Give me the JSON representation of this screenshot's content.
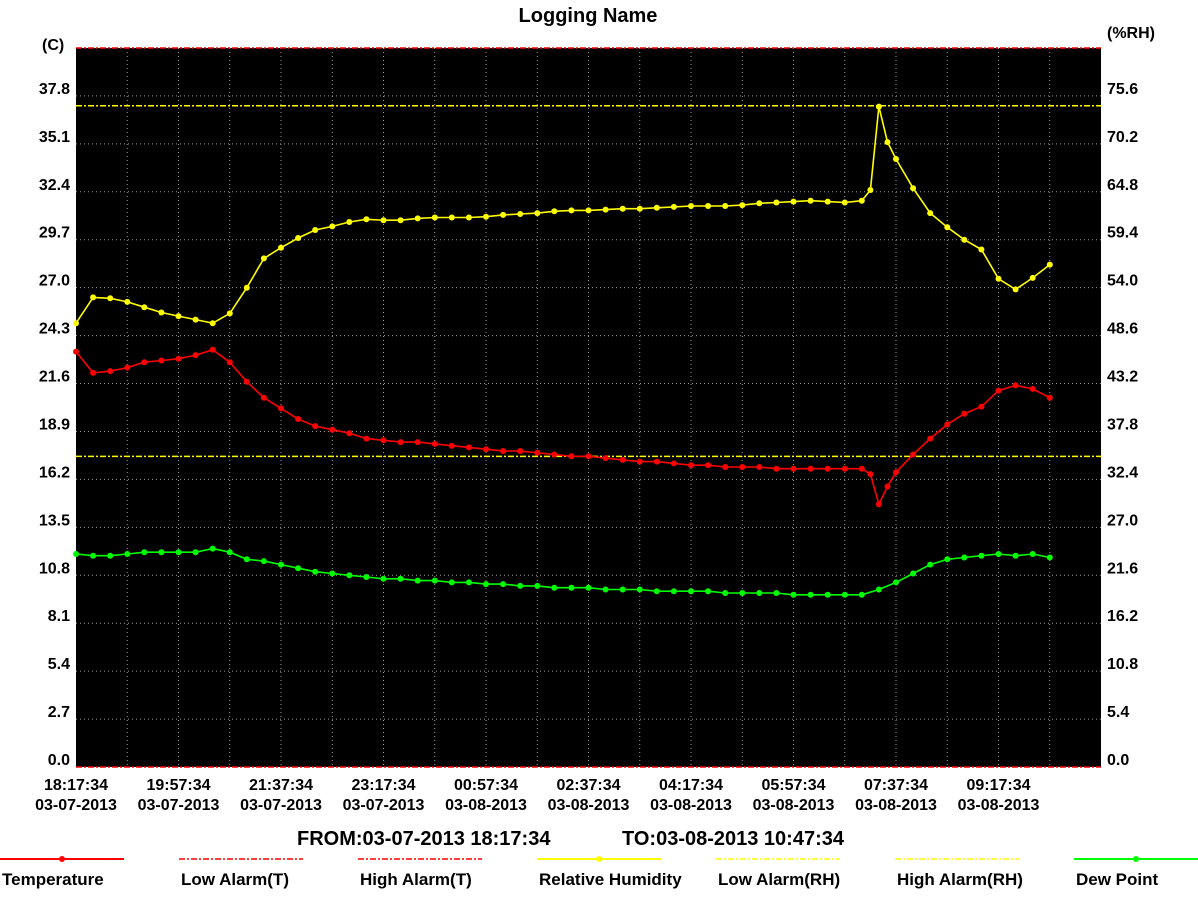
{
  "chart_data": {
    "type": "line",
    "title": "Logging Name",
    "left_axis": {
      "unit": "(C)",
      "ylim": [
        0.0,
        40.5
      ],
      "ticks": [
        "0.0",
        "2.7",
        "5.4",
        "8.1",
        "10.8",
        "13.5",
        "16.2",
        "18.9",
        "21.6",
        "24.3",
        "27.0",
        "29.7",
        "32.4",
        "35.1",
        "37.8"
      ]
    },
    "right_axis": {
      "unit": "(%RH)",
      "ylim": [
        0.0,
        81.0
      ],
      "ticks": [
        "0.0",
        "5.4",
        "10.8",
        "16.2",
        "21.6",
        "27.0",
        "32.4",
        "37.8",
        "43.2",
        "48.6",
        "54.0",
        "59.4",
        "64.8",
        "70.2",
        "75.6"
      ]
    },
    "x_axis": {
      "range": [
        "03-07-2013 18:17:34",
        "03-08-2013 10:47:34"
      ],
      "ticks": [
        {
          "time": "18:17:34",
          "date": "03-07-2013"
        },
        {
          "time": "19:57:34",
          "date": "03-07-2013"
        },
        {
          "time": "21:37:34",
          "date": "03-07-2013"
        },
        {
          "time": "23:17:34",
          "date": "03-07-2013"
        },
        {
          "time": "00:57:34",
          "date": "03-08-2013"
        },
        {
          "time": "02:37:34",
          "date": "03-08-2013"
        },
        {
          "time": "04:17:34",
          "date": "03-08-2013"
        },
        {
          "time": "05:57:34",
          "date": "03-08-2013"
        },
        {
          "time": "07:37:34",
          "date": "03-08-2013"
        },
        {
          "time": "09:17:34",
          "date": "03-08-2013"
        }
      ]
    },
    "range_label": {
      "from": "FROM:03-07-2013 18:17:34",
      "to": "TO:03-08-2013 10:47:34"
    },
    "grid": true,
    "background": "#000000",
    "legend_position": "bottom",
    "alarm_lines": [
      {
        "name": "High Alarm(RH)",
        "value": 74.5,
        "axis": "right",
        "color": "#ffff00"
      },
      {
        "name": "Low Alarm(RH)",
        "value": 35.0,
        "axis": "right",
        "color": "#ffff00"
      },
      {
        "name": "High Alarm(T)",
        "value": 40.5,
        "axis": "left",
        "color": "#ff0000"
      },
      {
        "name": "Low Alarm(T)",
        "value": 0.0,
        "axis": "left",
        "color": "#ff0000"
      }
    ],
    "series": [
      {
        "name": "Temperature",
        "axis": "left",
        "color": "#ff0000",
        "points": [
          [
            0,
            23.4
          ],
          [
            10,
            22.2
          ],
          [
            20,
            22.3
          ],
          [
            30,
            22.5
          ],
          [
            40,
            22.8
          ],
          [
            50,
            22.9
          ],
          [
            60,
            23.0
          ],
          [
            70,
            23.2
          ],
          [
            80,
            23.5
          ],
          [
            90,
            22.8
          ],
          [
            100,
            21.7
          ],
          [
            110,
            20.8
          ],
          [
            120,
            20.2
          ],
          [
            130,
            19.6
          ],
          [
            140,
            19.2
          ],
          [
            150,
            19.0
          ],
          [
            160,
            18.8
          ],
          [
            170,
            18.5
          ],
          [
            180,
            18.4
          ],
          [
            190,
            18.3
          ],
          [
            200,
            18.3
          ],
          [
            210,
            18.2
          ],
          [
            220,
            18.1
          ],
          [
            230,
            18.0
          ],
          [
            240,
            17.9
          ],
          [
            250,
            17.8
          ],
          [
            260,
            17.8
          ],
          [
            270,
            17.7
          ],
          [
            280,
            17.6
          ],
          [
            290,
            17.5
          ],
          [
            300,
            17.5
          ],
          [
            310,
            17.4
          ],
          [
            320,
            17.3
          ],
          [
            330,
            17.2
          ],
          [
            340,
            17.2
          ],
          [
            350,
            17.1
          ],
          [
            360,
            17.0
          ],
          [
            370,
            17.0
          ],
          [
            380,
            16.9
          ],
          [
            390,
            16.9
          ],
          [
            400,
            16.9
          ],
          [
            410,
            16.8
          ],
          [
            420,
            16.8
          ],
          [
            430,
            16.8
          ],
          [
            440,
            16.8
          ],
          [
            450,
            16.8
          ],
          [
            460,
            16.8
          ],
          [
            465,
            16.5
          ],
          [
            470,
            14.8
          ],
          [
            475,
            15.8
          ],
          [
            480,
            16.6
          ],
          [
            490,
            17.6
          ],
          [
            500,
            18.5
          ],
          [
            510,
            19.3
          ],
          [
            520,
            19.9
          ],
          [
            530,
            20.3
          ],
          [
            540,
            21.2
          ],
          [
            550,
            21.5
          ],
          [
            560,
            21.3
          ],
          [
            570,
            20.8
          ]
        ]
      },
      {
        "name": "Relative Humidity",
        "axis": "right",
        "color": "#ffff00",
        "points": [
          [
            0,
            50.0
          ],
          [
            10,
            52.9
          ],
          [
            20,
            52.8
          ],
          [
            30,
            52.4
          ],
          [
            40,
            51.8
          ],
          [
            50,
            51.2
          ],
          [
            60,
            50.8
          ],
          [
            70,
            50.4
          ],
          [
            80,
            50.0
          ],
          [
            90,
            51.1
          ],
          [
            100,
            54.0
          ],
          [
            110,
            57.3
          ],
          [
            120,
            58.5
          ],
          [
            130,
            59.6
          ],
          [
            140,
            60.5
          ],
          [
            150,
            60.9
          ],
          [
            160,
            61.4
          ],
          [
            170,
            61.7
          ],
          [
            180,
            61.6
          ],
          [
            190,
            61.6
          ],
          [
            200,
            61.8
          ],
          [
            210,
            61.9
          ],
          [
            220,
            61.9
          ],
          [
            230,
            61.9
          ],
          [
            240,
            62.0
          ],
          [
            250,
            62.2
          ],
          [
            260,
            62.3
          ],
          [
            270,
            62.4
          ],
          [
            280,
            62.6
          ],
          [
            290,
            62.7
          ],
          [
            300,
            62.7
          ],
          [
            310,
            62.8
          ],
          [
            320,
            62.9
          ],
          [
            330,
            62.9
          ],
          [
            340,
            63.0
          ],
          [
            350,
            63.1
          ],
          [
            360,
            63.2
          ],
          [
            370,
            63.2
          ],
          [
            380,
            63.2
          ],
          [
            390,
            63.3
          ],
          [
            400,
            63.5
          ],
          [
            410,
            63.6
          ],
          [
            420,
            63.7
          ],
          [
            430,
            63.8
          ],
          [
            440,
            63.7
          ],
          [
            450,
            63.6
          ],
          [
            460,
            63.8
          ],
          [
            465,
            65.0
          ],
          [
            470,
            74.4
          ],
          [
            475,
            70.4
          ],
          [
            480,
            68.5
          ],
          [
            490,
            65.2
          ],
          [
            500,
            62.4
          ],
          [
            510,
            60.8
          ],
          [
            520,
            59.4
          ],
          [
            530,
            58.3
          ],
          [
            540,
            55.0
          ],
          [
            550,
            53.8
          ],
          [
            560,
            55.1
          ],
          [
            570,
            56.6
          ]
        ]
      },
      {
        "name": "Dew Point",
        "axis": "left",
        "color": "#00ff00",
        "points": [
          [
            0,
            12.0
          ],
          [
            10,
            11.9
          ],
          [
            20,
            11.9
          ],
          [
            30,
            12.0
          ],
          [
            40,
            12.1
          ],
          [
            50,
            12.1
          ],
          [
            60,
            12.1
          ],
          [
            70,
            12.1
          ],
          [
            80,
            12.3
          ],
          [
            90,
            12.1
          ],
          [
            100,
            11.7
          ],
          [
            110,
            11.6
          ],
          [
            120,
            11.4
          ],
          [
            130,
            11.2
          ],
          [
            140,
            11.0
          ],
          [
            150,
            10.9
          ],
          [
            160,
            10.8
          ],
          [
            170,
            10.7
          ],
          [
            180,
            10.6
          ],
          [
            190,
            10.6
          ],
          [
            200,
            10.5
          ],
          [
            210,
            10.5
          ],
          [
            220,
            10.4
          ],
          [
            230,
            10.4
          ],
          [
            240,
            10.3
          ],
          [
            250,
            10.3
          ],
          [
            260,
            10.2
          ],
          [
            270,
            10.2
          ],
          [
            280,
            10.1
          ],
          [
            290,
            10.1
          ],
          [
            300,
            10.1
          ],
          [
            310,
            10.0
          ],
          [
            320,
            10.0
          ],
          [
            330,
            10.0
          ],
          [
            340,
            9.9
          ],
          [
            350,
            9.9
          ],
          [
            360,
            9.9
          ],
          [
            370,
            9.9
          ],
          [
            380,
            9.8
          ],
          [
            390,
            9.8
          ],
          [
            400,
            9.8
          ],
          [
            410,
            9.8
          ],
          [
            420,
            9.7
          ],
          [
            430,
            9.7
          ],
          [
            440,
            9.7
          ],
          [
            450,
            9.7
          ],
          [
            460,
            9.7
          ],
          [
            470,
            10.0
          ],
          [
            480,
            10.4
          ],
          [
            490,
            10.9
          ],
          [
            500,
            11.4
          ],
          [
            510,
            11.7
          ],
          [
            520,
            11.8
          ],
          [
            530,
            11.9
          ],
          [
            540,
            12.0
          ],
          [
            550,
            11.9
          ],
          [
            560,
            12.0
          ],
          [
            570,
            11.8
          ]
        ]
      }
    ]
  },
  "legend": [
    {
      "label": "Temperature",
      "color": "#ff0000",
      "style": "solid-marker"
    },
    {
      "label": "Low Alarm(T)",
      "color": "#ff0000",
      "style": "dashdot"
    },
    {
      "label": "High Alarm(T)",
      "color": "#ff0000",
      "style": "dashdot"
    },
    {
      "label": "Relative Humidity",
      "color": "#ffff00",
      "style": "solid-marker"
    },
    {
      "label": "Low Alarm(RH)",
      "color": "#ffff00",
      "style": "dashdot"
    },
    {
      "label": "High Alarm(RH)",
      "color": "#ffff00",
      "style": "dashdot"
    },
    {
      "label": "Dew Point",
      "color": "#00ff00",
      "style": "solid-marker"
    }
  ]
}
